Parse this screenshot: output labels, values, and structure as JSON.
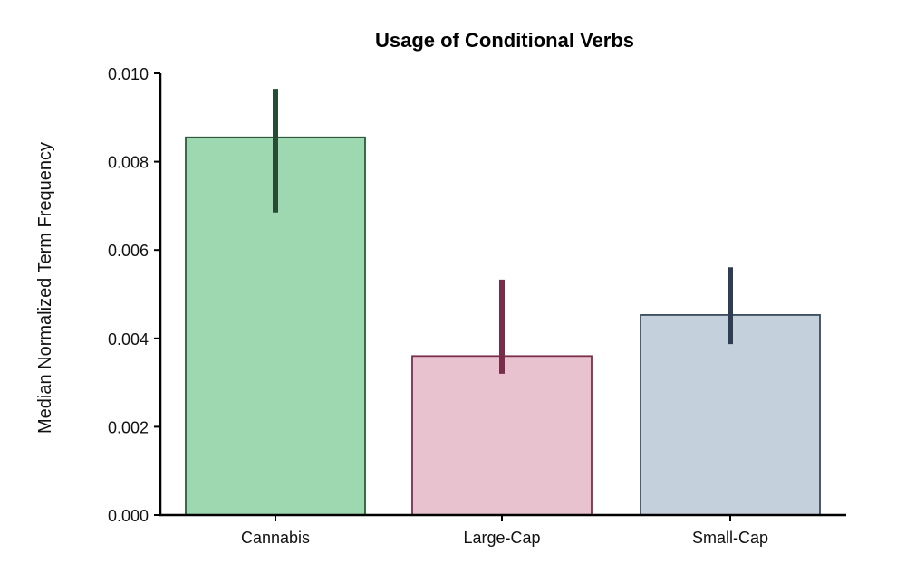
{
  "chart_data": {
    "type": "bar",
    "title": "Usage of Conditional Verbs",
    "xlabel": "",
    "ylabel": "Median Normalized Term Frequency",
    "categories": [
      "Cannabis",
      "Large-Cap",
      "Small-Cap"
    ],
    "values": [
      0.00855,
      0.0036,
      0.00453
    ],
    "error_bars": [
      {
        "low": 0.00685,
        "high": 0.00965
      },
      {
        "low": 0.0032,
        "high": 0.00533
      },
      {
        "low": 0.00387,
        "high": 0.00561
      }
    ],
    "ylim": [
      0.0,
      0.01
    ],
    "yticks": [
      0.0,
      0.002,
      0.004,
      0.006,
      0.008,
      0.01
    ],
    "ytick_labels": [
      "0.000",
      "0.002",
      "0.004",
      "0.006",
      "0.008",
      "0.010"
    ],
    "grid": false,
    "legend": null,
    "colors": {
      "fills": [
        "#9ed8b0",
        "#e8c3cf",
        "#c5d0dd"
      ],
      "edges": [
        "#2d5a3b",
        "#7a2e4b",
        "#3a4a5e"
      ],
      "errors": [
        "#264d33",
        "#782d4a",
        "#2e3d52"
      ]
    }
  }
}
